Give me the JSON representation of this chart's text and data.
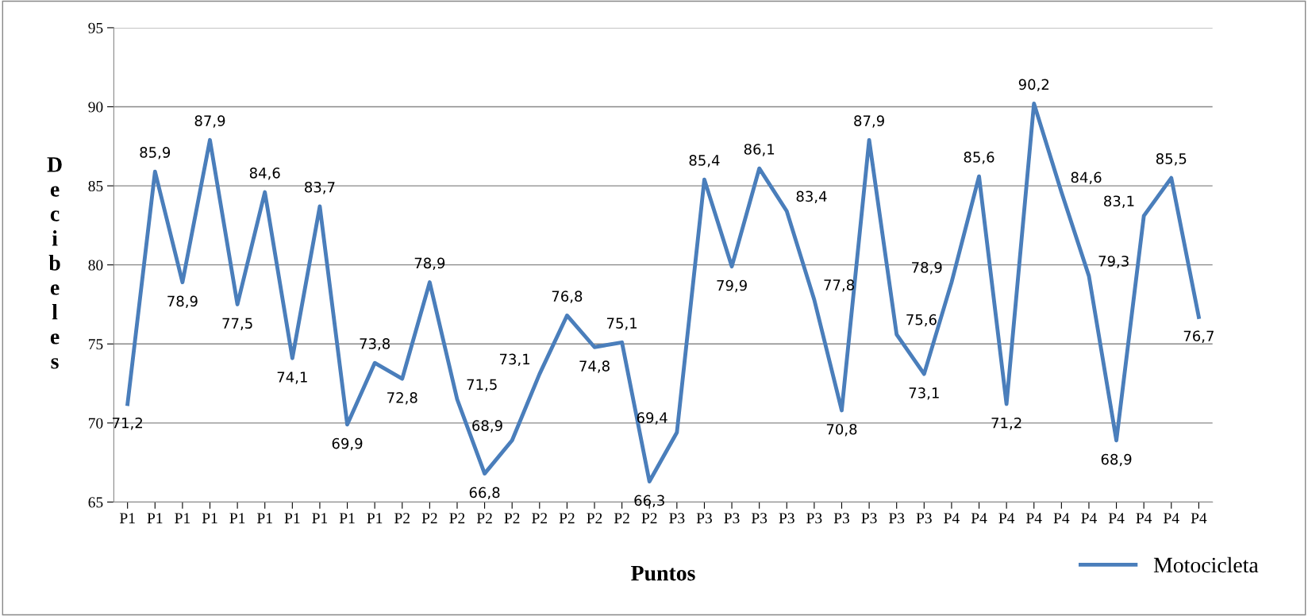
{
  "chart_data": {
    "type": "line",
    "xlabel": "Puntos",
    "ylabel": "Decibeles",
    "categories": [
      "P1",
      "P1",
      "P1",
      "P1",
      "P1",
      "P1",
      "P1",
      "P1",
      "P1",
      "P1",
      "P2",
      "P2",
      "P2",
      "P2",
      "P2",
      "P2",
      "P2",
      "P2",
      "P2",
      "P2",
      "P3",
      "P3",
      "P3",
      "P3",
      "P3",
      "P3",
      "P3",
      "P3",
      "P3",
      "P3",
      "P4",
      "P4",
      "P4",
      "P4",
      "P4",
      "P4",
      "P4",
      "P4",
      "P4",
      "P4"
    ],
    "series": [
      {
        "name": "Motocicleta",
        "color": "#4a7ebb",
        "values": [
          71.2,
          85.9,
          78.9,
          87.9,
          77.5,
          84.6,
          74.1,
          83.7,
          69.9,
          73.8,
          72.8,
          78.9,
          71.5,
          66.8,
          68.9,
          73.1,
          76.8,
          74.8,
          75.1,
          66.3,
          69.4,
          85.4,
          79.9,
          86.1,
          83.4,
          77.8,
          70.8,
          87.9,
          75.6,
          73.1,
          78.9,
          85.6,
          71.2,
          90.2,
          84.6,
          79.3,
          68.9,
          83.1,
          85.5,
          76.7
        ],
        "value_labels": [
          "71,2",
          "85,9",
          "78,9",
          "87,9",
          "77,5",
          "84,6",
          "74,1",
          "83,7",
          "69,9",
          "73,8",
          "72,8",
          "78,9",
          "71,5",
          "66,8",
          "68,9",
          "73,1",
          "76,8",
          "74,8",
          "75,1",
          "66,3",
          "69,4",
          "85,4",
          "79,9",
          "86,1",
          "83,4",
          "77,8",
          "70,8",
          "87,9",
          "75,6",
          "73,1",
          "78,9",
          "85,6",
          "71,2",
          "90,2",
          "84,6",
          "79,3",
          "68,9",
          "83,1",
          "85,5",
          "76,7"
        ]
      }
    ],
    "ylim": [
      65,
      95
    ],
    "yticks": [
      65,
      70,
      75,
      80,
      85,
      90,
      95
    ],
    "grid": "y",
    "legend": "bottom right",
    "marker": "none",
    "line_style": "solid"
  }
}
